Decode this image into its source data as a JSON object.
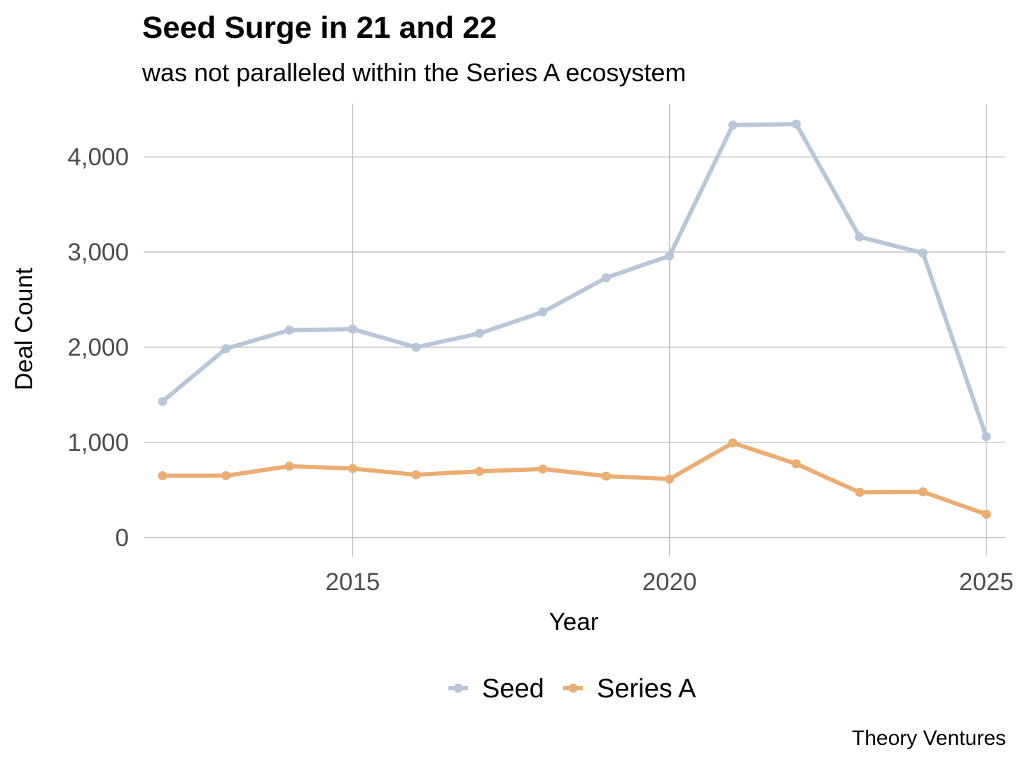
{
  "chart_data": {
    "type": "line",
    "title": "Seed Surge in 21 and 22",
    "subtitle": "was not paralleled within the Series A ecosystem",
    "xlabel": "Year",
    "ylabel": "Deal Count",
    "caption": "Theory Ventures",
    "x": [
      2012,
      2013,
      2014,
      2015,
      2016,
      2017,
      2018,
      2019,
      2020,
      2021,
      2022,
      2023,
      2024,
      2025
    ],
    "series": [
      {
        "name": "Seed",
        "color": "#b8c6d9",
        "values": [
          1430,
          1985,
          2180,
          2190,
          2000,
          2145,
          2370,
          2730,
          2960,
          4335,
          4345,
          3160,
          2990,
          1060
        ]
      },
      {
        "name": "Series A",
        "color": "#ecad72",
        "values": [
          650,
          650,
          750,
          725,
          660,
          695,
          720,
          645,
          615,
          995,
          775,
          475,
          480,
          245
        ]
      }
    ],
    "xlim": [
      2011.7,
      2025.3
    ],
    "ylim": [
      -200,
      4560
    ],
    "x_ticks": [
      2015,
      2020,
      2025
    ],
    "x_tick_labels": [
      "2015",
      "2020",
      "2025"
    ],
    "y_ticks": [
      0,
      1000,
      2000,
      3000,
      4000
    ],
    "y_tick_labels": [
      "0",
      "1,000",
      "2,000",
      "3,000",
      "4,000"
    ],
    "grid": true,
    "legend_position": "bottom"
  }
}
